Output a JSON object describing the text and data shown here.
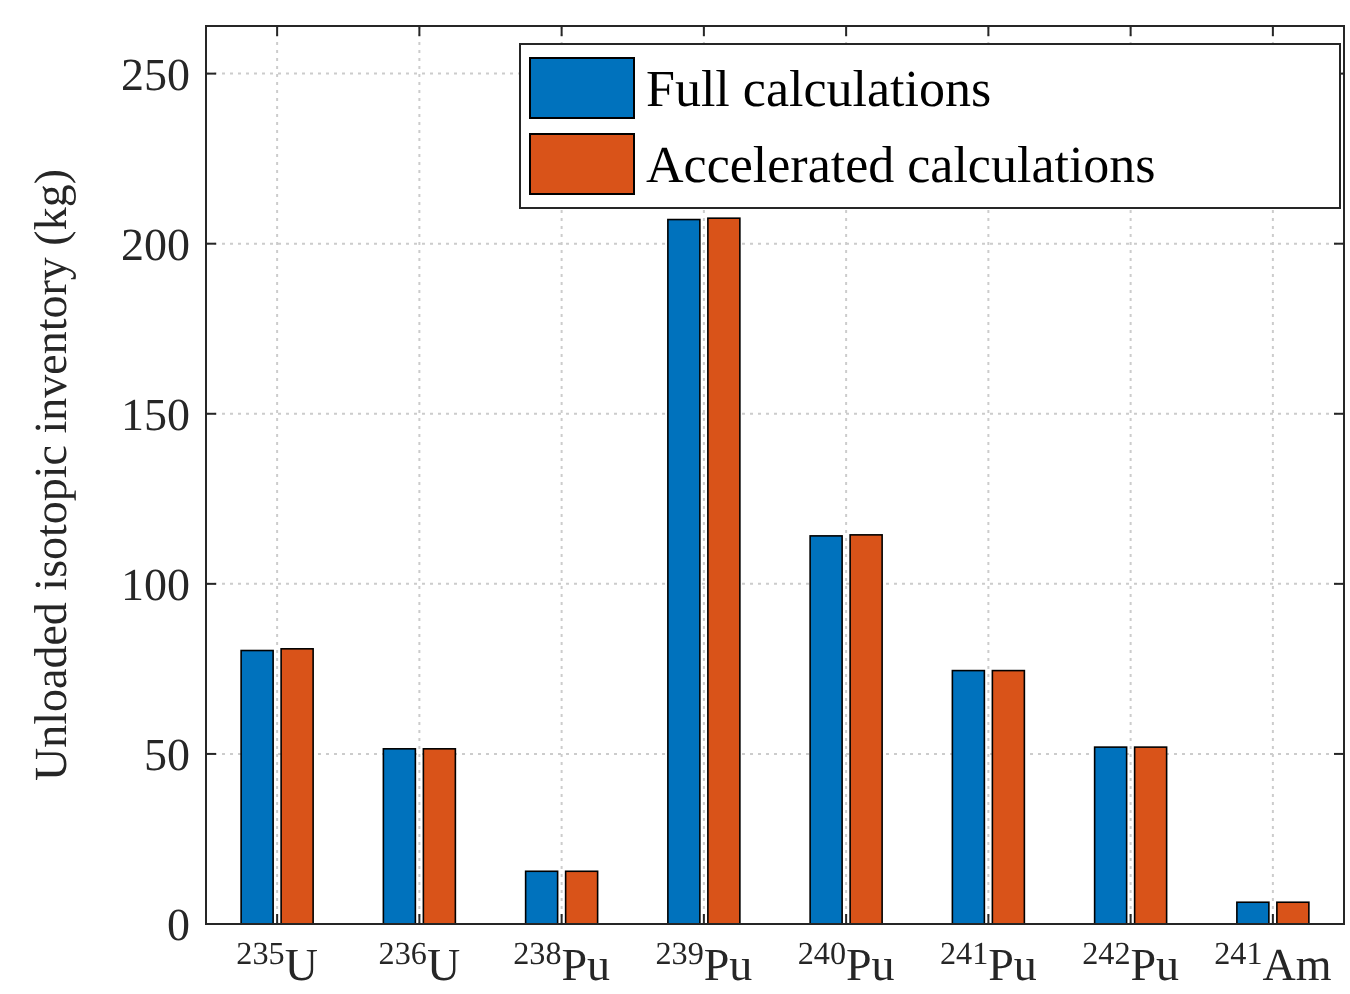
{
  "chart_data": {
    "type": "bar",
    "ylabel": "Unloaded isotopic inventory (kg)",
    "categories": [
      "$^{235}$U",
      "$^{236}$U",
      "$^{238}$Pu",
      "$^{239}$Pu",
      "$^{240}$Pu",
      "$^{241}$Pu",
      "$^{242}$Pu",
      "$^{241}$Am"
    ],
    "series": [
      {
        "name": "Full calculations",
        "color": "#0072bd",
        "values": [
          80.4,
          51.5,
          15.5,
          207.1,
          114.1,
          74.5,
          52,
          6.4
        ]
      },
      {
        "name": "Accelerated calculations",
        "color": "#d95319",
        "values": [
          80.9,
          51.5,
          15.5,
          207.5,
          114.4,
          74.5,
          52,
          6.4
        ]
      }
    ],
    "ylim": [
      0,
      264
    ],
    "yticks": [
      0,
      50,
      100,
      150,
      200,
      250
    ],
    "grid": true,
    "legend": "top right"
  }
}
